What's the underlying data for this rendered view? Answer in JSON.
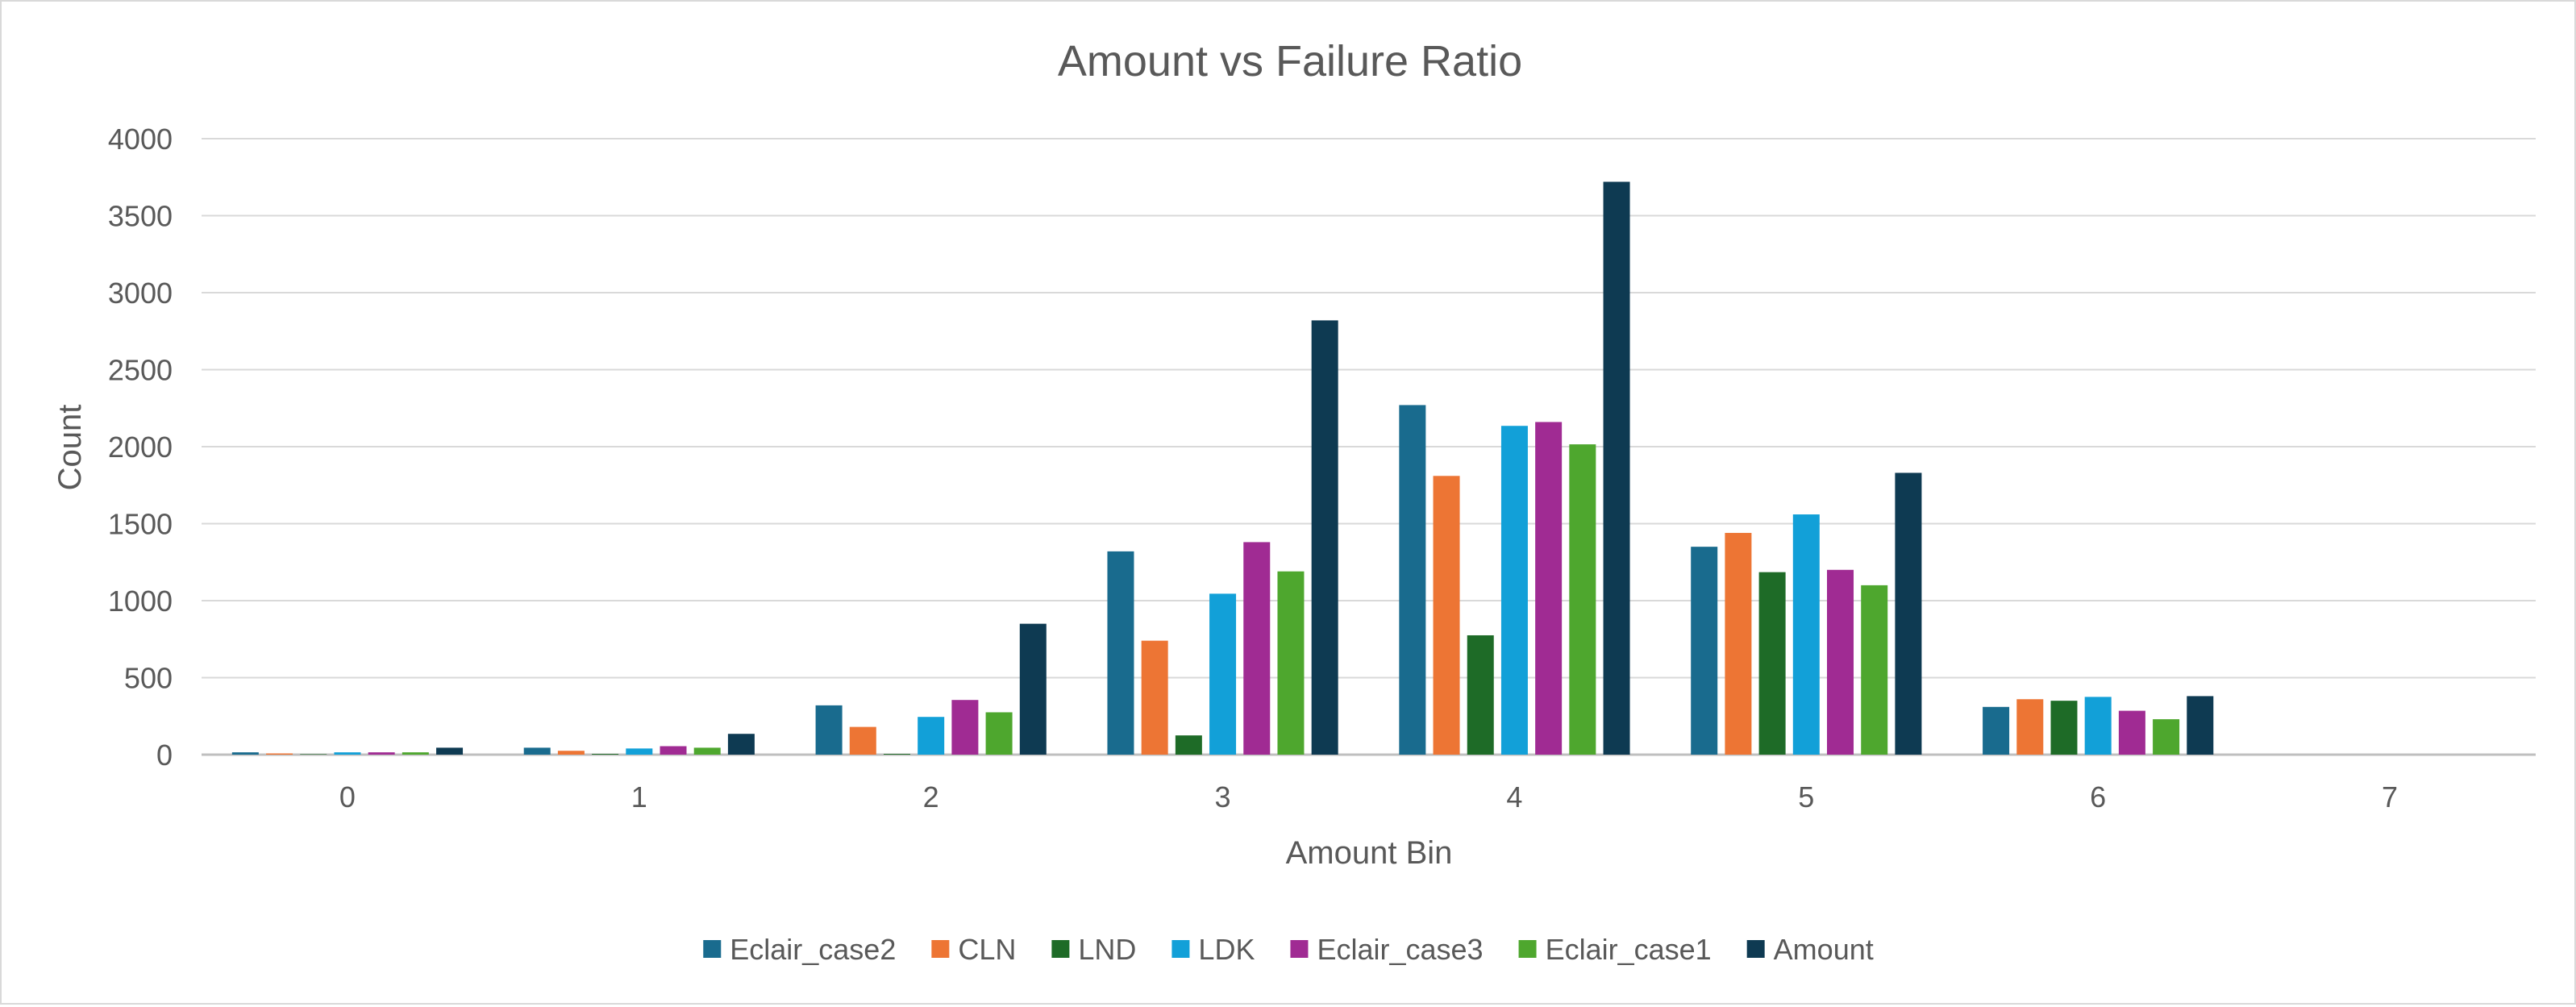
{
  "chart_data": {
    "type": "bar",
    "title": "Amount vs Failure Ratio",
    "xlabel": "Amount Bin",
    "ylabel": "Count",
    "ylim": [
      0,
      4000
    ],
    "yticks": [
      0,
      500,
      1000,
      1500,
      2000,
      2500,
      3000,
      3500,
      4000
    ],
    "grid": true,
    "legend_position": "bottom",
    "categories": [
      "0",
      "1",
      "2",
      "3",
      "4",
      "5",
      "6",
      "7"
    ],
    "series": [
      {
        "name": "Eclair_case2",
        "color": "#196B8E",
        "values": [
          15,
          45,
          320,
          1320,
          2270,
          1350,
          310,
          0
        ]
      },
      {
        "name": "CLN",
        "color": "#ED7534",
        "values": [
          8,
          25,
          180,
          740,
          1810,
          1440,
          360,
          0
        ]
      },
      {
        "name": "LND",
        "color": "#1E6B27",
        "values": [
          3,
          5,
          5,
          125,
          775,
          1185,
          350,
          0
        ]
      },
      {
        "name": "LDK",
        "color": "#12A0D8",
        "values": [
          15,
          40,
          245,
          1045,
          2135,
          1560,
          375,
          0
        ]
      },
      {
        "name": "Eclair_case3",
        "color": "#A02B93",
        "values": [
          15,
          55,
          355,
          1380,
          2160,
          1200,
          285,
          0
        ]
      },
      {
        "name": "Eclair_case1",
        "color": "#4EA72E",
        "values": [
          15,
          45,
          275,
          1190,
          2015,
          1100,
          230,
          0
        ]
      },
      {
        "name": "Amount",
        "color": "#0E3A52",
        "values": [
          45,
          135,
          850,
          2820,
          3720,
          1830,
          380,
          0
        ]
      }
    ]
  }
}
